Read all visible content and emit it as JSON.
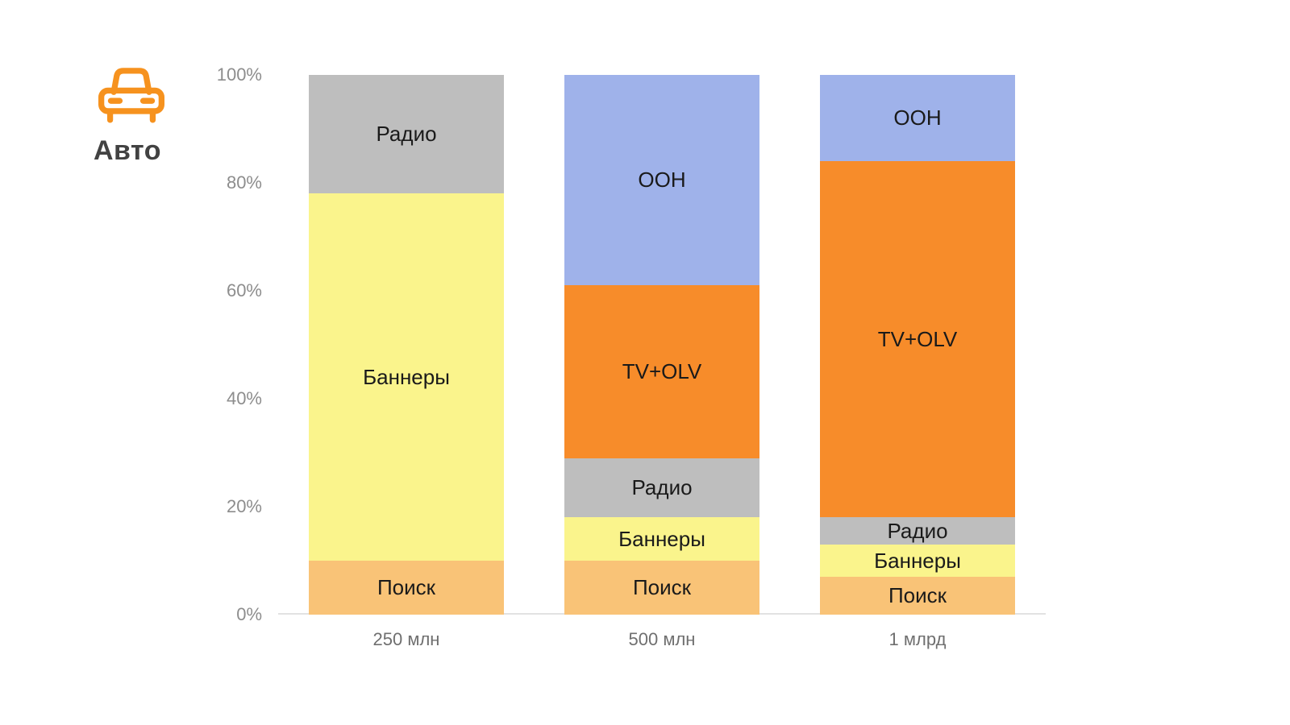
{
  "header": {
    "icon": "car-icon",
    "title": "Авто",
    "accent_color": "#F6921E"
  },
  "chart_data": {
    "type": "bar",
    "stacked": true,
    "percent": true,
    "title": "Авто",
    "xlabel": "",
    "ylabel": "",
    "ylim": [
      0,
      100
    ],
    "yticks": [
      "0%",
      "20%",
      "40%",
      "60%",
      "80%",
      "100%"
    ],
    "grid": false,
    "legend": "none",
    "labels_inside": true,
    "categories": [
      "250 млн",
      "500 млн",
      "1 млрд"
    ],
    "series": [
      {
        "name": "Поиск",
        "color": "#F9C377",
        "values": [
          10,
          10,
          7
        ]
      },
      {
        "name": "Баннеры",
        "color": "#FAF48C",
        "values": [
          68,
          8,
          6
        ]
      },
      {
        "name": "Радио",
        "color": "#BEBEBE",
        "values": [
          22,
          11,
          5
        ]
      },
      {
        "name": "TV+OLV",
        "color": "#F78C2A",
        "values": [
          0,
          32,
          66
        ]
      },
      {
        "name": "OOH",
        "color": "#9FB2EA",
        "values": [
          0,
          39,
          16
        ]
      }
    ]
  }
}
